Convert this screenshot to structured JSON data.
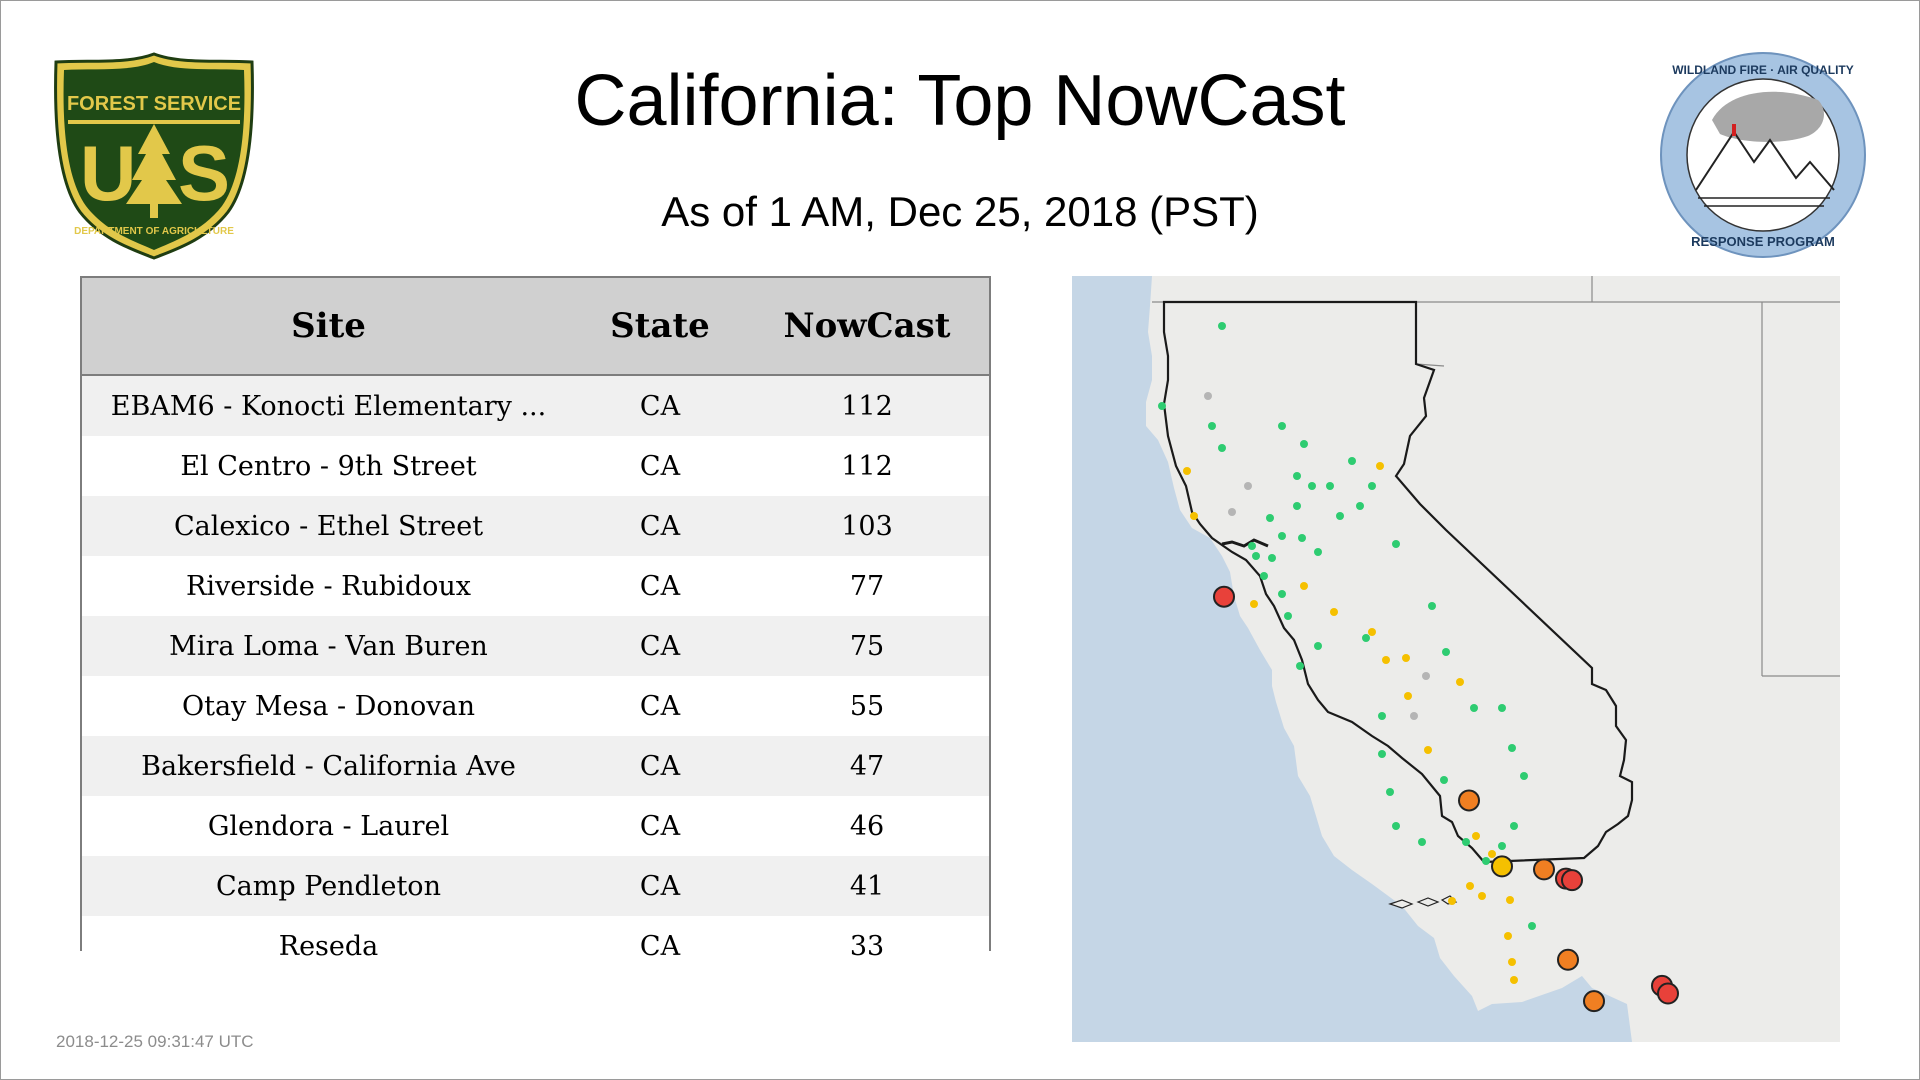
{
  "title": "California: Top NowCast",
  "subtitle": "As of  1 AM, Dec 25, 2018 (PST)",
  "timestamp": "2018-12-25 09:31:47 UTC",
  "logos": {
    "usfs": {
      "top_text": "FOREST SERVICE",
      "letters": "US",
      "bottom_text": "DEPARTMENT OF AGRICULTURE"
    },
    "wfaq": {
      "top_text": "WILDLAND FIRE · AIR QUALITY",
      "bottom_text": "RESPONSE PROGRAM"
    }
  },
  "table": {
    "headers": [
      "Site",
      "State",
      "NowCast"
    ],
    "rows": [
      {
        "site": "EBAM6 - Konocti Elementary ...",
        "state": "CA",
        "nowcast": "112"
      },
      {
        "site": "El Centro - 9th Street",
        "state": "CA",
        "nowcast": "112"
      },
      {
        "site": "Calexico - Ethel Street",
        "state": "CA",
        "nowcast": "103"
      },
      {
        "site": "Riverside - Rubidoux",
        "state": "CA",
        "nowcast": "77"
      },
      {
        "site": "Mira Loma - Van Buren",
        "state": "CA",
        "nowcast": "75"
      },
      {
        "site": "Otay Mesa - Donovan",
        "state": "CA",
        "nowcast": "55"
      },
      {
        "site": "Bakersfield - California Ave",
        "state": "CA",
        "nowcast": "47"
      },
      {
        "site": "Glendora - Laurel",
        "state": "CA",
        "nowcast": "46"
      },
      {
        "site": "Camp Pendleton",
        "state": "CA",
        "nowcast": "41"
      },
      {
        "site": "Reseda",
        "state": "CA",
        "nowcast": "33"
      }
    ]
  },
  "map": {
    "colors": {
      "ocean": "#c5d6e6",
      "land": "#ececea",
      "good": "#2ecc71",
      "moderate": "#f5c000",
      "usg": "#f07f22",
      "unhealthy": "#e8413a",
      "no_data": "#b5b5b5"
    }
  }
}
